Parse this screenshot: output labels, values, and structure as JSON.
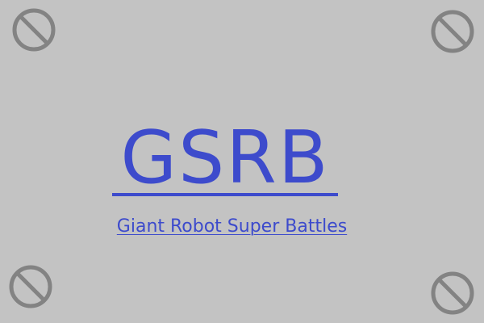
{
  "colors": {
    "background": "#c3c3c3",
    "link": "#3d4bcc",
    "icon": "#838383"
  },
  "logo": {
    "text": "GSRB"
  },
  "subtitle": {
    "text": "Giant Robot Super Battles"
  },
  "icons": [
    {
      "name": "no-entry-icon"
    },
    {
      "name": "no-entry-icon"
    },
    {
      "name": "no-entry-icon"
    },
    {
      "name": "no-entry-icon"
    }
  ]
}
